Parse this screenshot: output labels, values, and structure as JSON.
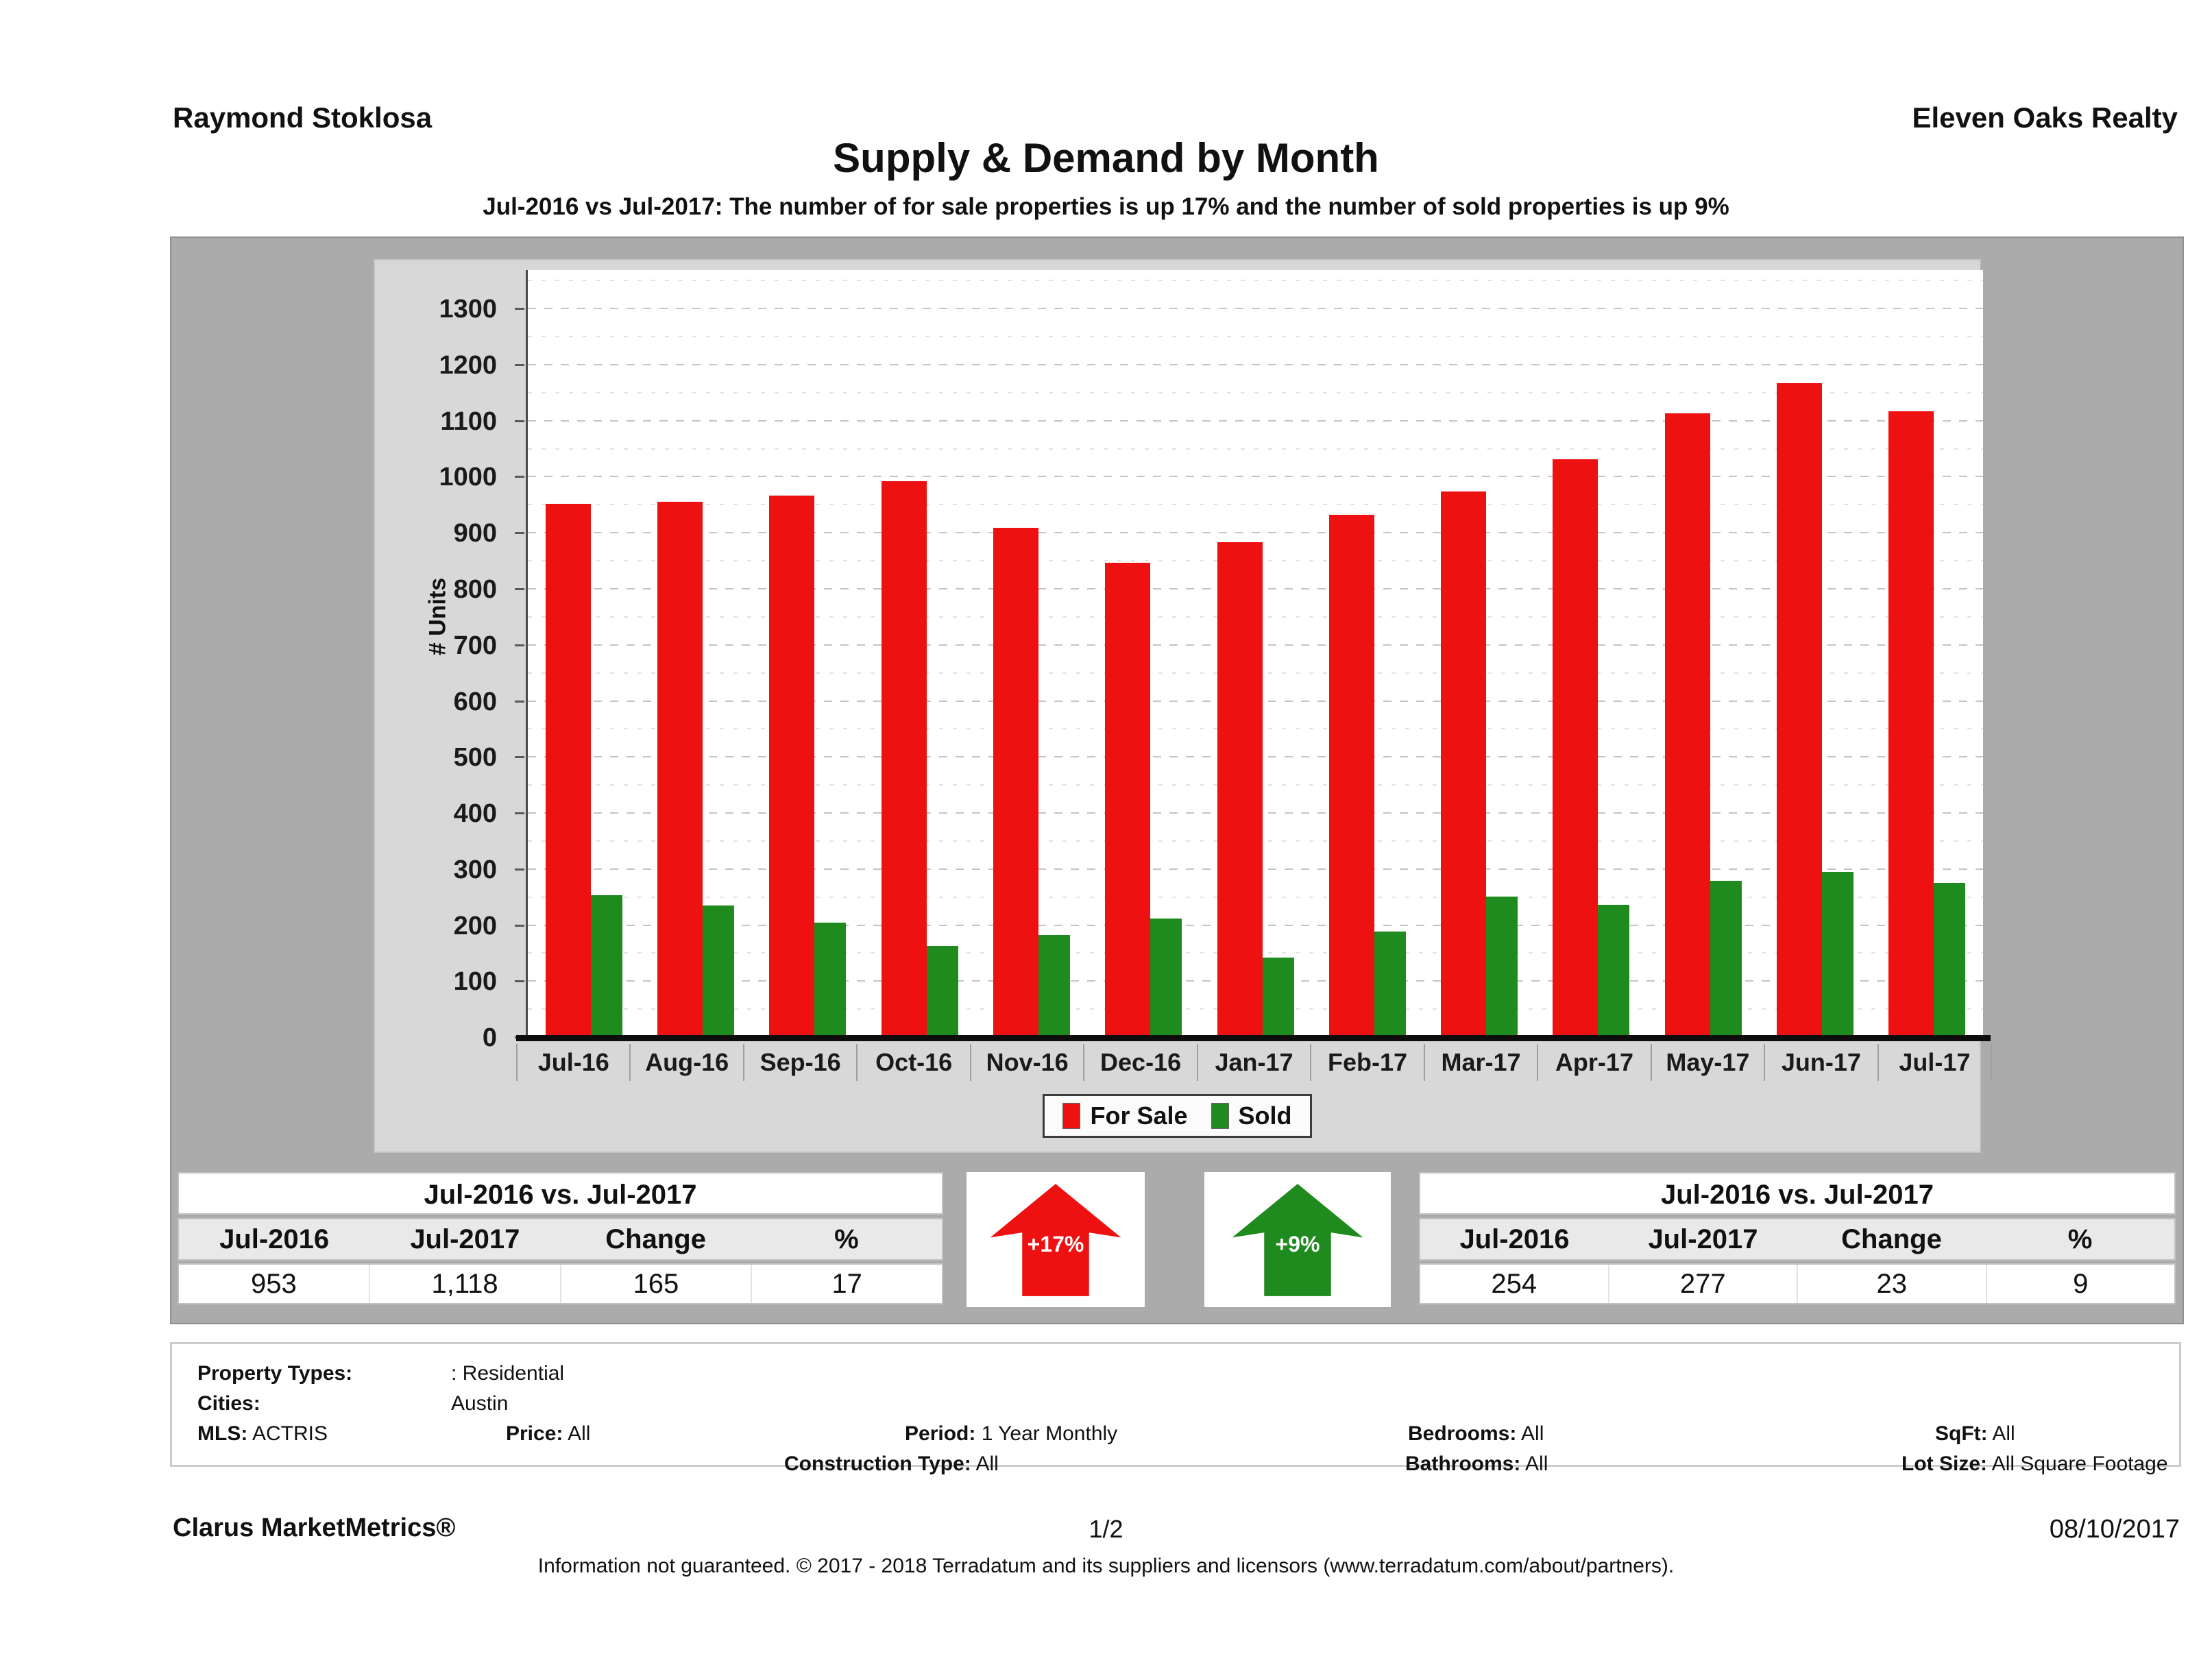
{
  "header": {
    "agent": "Raymond Stoklosa",
    "company": "Eleven Oaks Realty",
    "title": "Supply & Demand by Month",
    "subtitle": "Jul-2016 vs Jul-2017: The number of for sale properties is up 17% and the number of sold properties is up 9%"
  },
  "chart_data": {
    "type": "bar",
    "title": "Supply & Demand by Month",
    "ylabel": "# Units",
    "ylim": [
      0,
      1370
    ],
    "ytick_step": 100,
    "ytick_max_label": 1300,
    "grid": "dashed horizontal, minor dotted at 50s",
    "legend_position": "bottom-center",
    "categories": [
      "Jul-16",
      "Aug-16",
      "Sep-16",
      "Oct-16",
      "Nov-16",
      "Dec-16",
      "Jan-17",
      "Feb-17",
      "Mar-17",
      "Apr-17",
      "May-17",
      "Jun-17",
      "Jul-17"
    ],
    "series": [
      {
        "name": "For Sale",
        "color": "#ee1111",
        "values": [
          953,
          957,
          968,
          993,
          910,
          848,
          884,
          933,
          975,
          1032,
          1114,
          1168,
          1118
        ]
      },
      {
        "name": "Sold",
        "color": "#1f8b1f",
        "values": [
          254,
          236,
          206,
          164,
          183,
          213,
          143,
          190,
          252,
          237,
          280,
          296,
          277
        ]
      }
    ]
  },
  "summary_tables": {
    "for_sale": {
      "title": "Jul-2016 vs. Jul-2017",
      "columns": [
        "Jul-2016",
        "Jul-2017",
        "Change",
        "%"
      ],
      "values": [
        "953",
        "1,118",
        "165",
        "17"
      ]
    },
    "sold": {
      "title": "Jul-2016 vs. Jul-2017",
      "columns": [
        "Jul-2016",
        "Jul-2017",
        "Change",
        "%"
      ],
      "values": [
        "254",
        "277",
        "23",
        "9"
      ]
    }
  },
  "arrows": {
    "for_sale": {
      "label": "+17%",
      "color": "#ee1111",
      "icon": "up-arrow-icon"
    },
    "sold": {
      "label": "+9%",
      "color": "#1f8b1f",
      "icon": "up-arrow-icon"
    }
  },
  "filters": {
    "rows": [
      [
        {
          "label": "Property Types:",
          "value": ": Residential"
        }
      ],
      [
        {
          "label": "Cities:",
          "value": "Austin"
        }
      ],
      [
        {
          "label": "MLS:",
          "value": "ACTRIS"
        },
        {
          "label": "Price:",
          "value": "All"
        },
        {
          "label": "Period:",
          "value": "1 Year Monthly"
        },
        {
          "label": "Bedrooms:",
          "value": "All"
        },
        {
          "label": "SqFt:",
          "value": "All"
        }
      ],
      [
        {
          "label": "Construction Type:",
          "value": "All"
        },
        {
          "label": "Bathrooms:",
          "value": "All"
        },
        {
          "label": "Lot Size:",
          "value": "All Square Footage"
        }
      ]
    ]
  },
  "footer": {
    "brand": "Clarus MarketMetrics®",
    "page": "1/2",
    "date": "08/10/2017",
    "disclaimer": "Information not guaranteed. © 2017 - 2018 Terradatum and its suppliers and licensors (www.terradatum.com/about/partners)."
  }
}
